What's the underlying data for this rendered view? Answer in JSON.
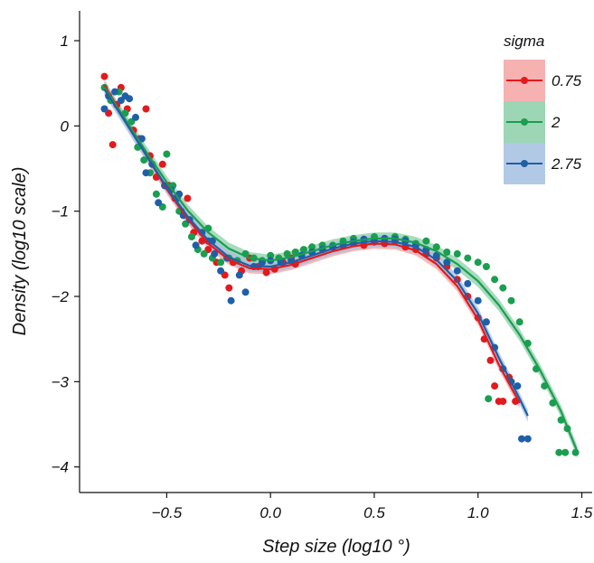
{
  "chart_data": {
    "type": "scatter",
    "xlabel": "Step size (log10 °)",
    "ylabel": "Density (log10 scale)",
    "xlim": [
      -0.92,
      1.55
    ],
    "ylim": [
      -4.3,
      1.35
    ],
    "xticks": [
      -0.5,
      0.0,
      0.5,
      1.0,
      1.5
    ],
    "xtick_labels": [
      "−0.5",
      "0.0",
      "0.5",
      "1.0",
      "1.5"
    ],
    "yticks": [
      -4,
      -3,
      -2,
      -1,
      0,
      1
    ],
    "ytick_labels": [
      "−4",
      "−3",
      "−2",
      "−1",
      "0",
      "1"
    ],
    "grid": false,
    "legend": {
      "title": "sigma",
      "position": "top-right",
      "entries": [
        {
          "label": "0.75",
          "color": "#e31a1c",
          "band": "#f4a3a3"
        },
        {
          "label": "2",
          "color": "#1a9e50",
          "band": "#8ccfa8"
        },
        {
          "label": "2.75",
          "color": "#1f5fa8",
          "band": "#a5bfe0"
        }
      ]
    },
    "series": [
      {
        "name": "0.75",
        "color": "#e31a1c",
        "band_color": "#f4a3a3",
        "points": [
          [
            -0.8,
            0.58
          ],
          [
            -0.78,
            0.15
          ],
          [
            -0.76,
            -0.22
          ],
          [
            -0.74,
            0.25
          ],
          [
            -0.72,
            0.45
          ],
          [
            -0.69,
            0.2
          ],
          [
            -0.66,
            -0.05
          ],
          [
            -0.63,
            -0.15
          ],
          [
            -0.6,
            0.2
          ],
          [
            -0.58,
            -0.35
          ],
          [
            -0.55,
            -0.6
          ],
          [
            -0.52,
            -0.45
          ],
          [
            -0.49,
            -0.7
          ],
          [
            -0.46,
            -0.85
          ],
          [
            -0.43,
            -1.0
          ],
          [
            -0.4,
            -0.85
          ],
          [
            -0.37,
            -1.25
          ],
          [
            -0.33,
            -1.35
          ],
          [
            -0.3,
            -1.45
          ],
          [
            -0.26,
            -1.6
          ],
          [
            -0.22,
            -1.75
          ],
          [
            -0.18,
            -1.6
          ],
          [
            -0.14,
            -1.7
          ],
          [
            -0.1,
            -1.55
          ],
          [
            -0.06,
            -1.65
          ],
          [
            -0.02,
            -1.72
          ],
          [
            0.02,
            -1.68
          ],
          [
            0.06,
            -1.6
          ],
          [
            0.1,
            -1.55
          ],
          [
            0.15,
            -1.52
          ],
          [
            0.2,
            -1.48
          ],
          [
            0.25,
            -1.45
          ],
          [
            0.3,
            -1.42
          ],
          [
            0.35,
            -1.4
          ],
          [
            0.4,
            -1.38
          ],
          [
            0.45,
            -1.4
          ],
          [
            0.5,
            -1.36
          ],
          [
            0.55,
            -1.38
          ],
          [
            0.6,
            -1.35
          ],
          [
            0.65,
            -1.42
          ],
          [
            0.7,
            -1.45
          ],
          [
            0.75,
            -1.5
          ],
          [
            0.8,
            -1.55
          ],
          [
            0.85,
            -1.65
          ],
          [
            0.9,
            -1.8
          ],
          [
            0.95,
            -2.0
          ],
          [
            1.0,
            -2.25
          ],
          [
            1.03,
            -2.5
          ],
          [
            1.06,
            -2.75
          ],
          [
            1.08,
            -3.05
          ],
          [
            1.1,
            -3.23
          ],
          [
            1.12,
            -3.23
          ],
          [
            1.15,
            -2.95
          ],
          [
            1.18,
            -3.23
          ],
          [
            -0.2,
            -1.9
          ],
          [
            0.12,
            -1.62
          ]
        ],
        "fit": [
          [
            -0.8,
            0.48
          ],
          [
            -0.7,
            0.07
          ],
          [
            -0.6,
            -0.34
          ],
          [
            -0.5,
            -0.74
          ],
          [
            -0.4,
            -1.09
          ],
          [
            -0.3,
            -1.38
          ],
          [
            -0.2,
            -1.57
          ],
          [
            -0.1,
            -1.67
          ],
          [
            0.0,
            -1.68
          ],
          [
            0.1,
            -1.63
          ],
          [
            0.2,
            -1.55
          ],
          [
            0.3,
            -1.47
          ],
          [
            0.4,
            -1.41
          ],
          [
            0.5,
            -1.38
          ],
          [
            0.6,
            -1.39
          ],
          [
            0.7,
            -1.46
          ],
          [
            0.8,
            -1.62
          ],
          [
            0.9,
            -1.88
          ],
          [
            1.0,
            -2.27
          ],
          [
            1.1,
            -2.8
          ],
          [
            1.2,
            -3.25
          ]
        ],
        "band_halfwidth": 0.06
      },
      {
        "name": "2",
        "color": "#1a9e50",
        "band_color": "#8ccfa8",
        "points": [
          [
            -0.8,
            0.45
          ],
          [
            -0.77,
            0.3
          ],
          [
            -0.73,
            0.4
          ],
          [
            -0.7,
            0.15
          ],
          [
            -0.67,
            0.05
          ],
          [
            -0.64,
            -0.25
          ],
          [
            -0.61,
            -0.4
          ],
          [
            -0.58,
            -0.55
          ],
          [
            -0.55,
            -0.8
          ],
          [
            -0.52,
            -0.95
          ],
          [
            -0.5,
            -0.33
          ],
          [
            -0.47,
            -0.7
          ],
          [
            -0.44,
            -1.0
          ],
          [
            -0.41,
            -1.15
          ],
          [
            -0.38,
            -1.3
          ],
          [
            -0.35,
            -1.45
          ],
          [
            -0.32,
            -1.5
          ],
          [
            -0.28,
            -1.55
          ],
          [
            -0.24,
            -1.6
          ],
          [
            -0.2,
            -1.55
          ],
          [
            -0.16,
            -1.58
          ],
          [
            -0.12,
            -1.5
          ],
          [
            -0.08,
            -1.55
          ],
          [
            -0.04,
            -1.58
          ],
          [
            0.0,
            -1.52
          ],
          [
            0.04,
            -1.55
          ],
          [
            0.08,
            -1.5
          ],
          [
            0.12,
            -1.48
          ],
          [
            0.16,
            -1.45
          ],
          [
            0.2,
            -1.42
          ],
          [
            0.25,
            -1.4
          ],
          [
            0.3,
            -1.4
          ],
          [
            0.35,
            -1.35
          ],
          [
            0.4,
            -1.32
          ],
          [
            0.45,
            -1.33
          ],
          [
            0.5,
            -1.3
          ],
          [
            0.55,
            -1.32
          ],
          [
            0.6,
            -1.3
          ],
          [
            0.65,
            -1.33
          ],
          [
            0.7,
            -1.38
          ],
          [
            0.75,
            -1.35
          ],
          [
            0.8,
            -1.42
          ],
          [
            0.85,
            -1.48
          ],
          [
            0.9,
            -1.5
          ],
          [
            0.95,
            -1.55
          ],
          [
            1.0,
            -1.6
          ],
          [
            1.04,
            -1.65
          ],
          [
            1.08,
            -1.8
          ],
          [
            1.12,
            -1.9
          ],
          [
            1.16,
            -2.05
          ],
          [
            1.2,
            -2.3
          ],
          [
            1.24,
            -2.55
          ],
          [
            1.28,
            -2.85
          ],
          [
            1.32,
            -3.05
          ],
          [
            1.36,
            -3.25
          ],
          [
            1.4,
            -3.45
          ],
          [
            1.43,
            -3.55
          ],
          [
            1.39,
            -3.83
          ],
          [
            1.42,
            -3.83
          ],
          [
            1.47,
            -3.83
          ],
          [
            1.05,
            -3.2
          ],
          [
            -0.3,
            -1.2
          ]
        ],
        "fit": [
          [
            -0.8,
            0.45
          ],
          [
            -0.7,
            0.08
          ],
          [
            -0.6,
            -0.3
          ],
          [
            -0.5,
            -0.66
          ],
          [
            -0.4,
            -0.99
          ],
          [
            -0.3,
            -1.25
          ],
          [
            -0.2,
            -1.44
          ],
          [
            -0.1,
            -1.55
          ],
          [
            0.0,
            -1.58
          ],
          [
            0.1,
            -1.54
          ],
          [
            0.2,
            -1.47
          ],
          [
            0.3,
            -1.4
          ],
          [
            0.4,
            -1.35
          ],
          [
            0.5,
            -1.32
          ],
          [
            0.6,
            -1.32
          ],
          [
            0.7,
            -1.37
          ],
          [
            0.8,
            -1.47
          ],
          [
            0.9,
            -1.62
          ],
          [
            1.0,
            -1.82
          ],
          [
            1.1,
            -2.1
          ],
          [
            1.2,
            -2.45
          ],
          [
            1.3,
            -2.87
          ],
          [
            1.4,
            -3.35
          ],
          [
            1.48,
            -3.83
          ]
        ],
        "band_halfwidth": 0.07
      },
      {
        "name": "2.75",
        "color": "#1f5fa8",
        "band_color": "#a5bfe0",
        "points": [
          [
            -0.8,
            0.2
          ],
          [
            -0.78,
            0.35
          ],
          [
            -0.75,
            0.4
          ],
          [
            -0.72,
            0.3
          ],
          [
            -0.7,
            0.35
          ],
          [
            -0.68,
            0.32
          ],
          [
            -0.65,
            0.1
          ],
          [
            -0.62,
            -0.15
          ],
          [
            -0.6,
            -0.55
          ],
          [
            -0.57,
            -0.45
          ],
          [
            -0.54,
            -0.9
          ],
          [
            -0.51,
            -0.7
          ],
          [
            -0.48,
            -0.75
          ],
          [
            -0.45,
            -0.85
          ],
          [
            -0.42,
            -1.05
          ],
          [
            -0.39,
            -1.1
          ],
          [
            -0.36,
            -1.4
          ],
          [
            -0.33,
            -1.25
          ],
          [
            -0.3,
            -1.35
          ],
          [
            -0.27,
            -1.5
          ],
          [
            -0.24,
            -1.7
          ],
          [
            -0.21,
            -1.55
          ],
          [
            -0.19,
            -2.05
          ],
          [
            -0.15,
            -1.75
          ],
          [
            -0.12,
            -1.95
          ],
          [
            -0.08,
            -1.65
          ],
          [
            -0.04,
            -1.6
          ],
          [
            0.0,
            -1.58
          ],
          [
            0.05,
            -1.6
          ],
          [
            0.1,
            -1.58
          ],
          [
            0.15,
            -1.52
          ],
          [
            0.2,
            -1.48
          ],
          [
            0.25,
            -1.45
          ],
          [
            0.3,
            -1.42
          ],
          [
            0.35,
            -1.4
          ],
          [
            0.4,
            -1.36
          ],
          [
            0.45,
            -1.33
          ],
          [
            0.5,
            -1.35
          ],
          [
            0.55,
            -1.32
          ],
          [
            0.6,
            -1.33
          ],
          [
            0.65,
            -1.35
          ],
          [
            0.7,
            -1.4
          ],
          [
            0.75,
            -1.45
          ],
          [
            0.8,
            -1.52
          ],
          [
            0.85,
            -1.6
          ],
          [
            0.9,
            -1.7
          ],
          [
            0.95,
            -1.85
          ],
          [
            1.0,
            -2.05
          ],
          [
            1.04,
            -2.3
          ],
          [
            1.08,
            -2.6
          ],
          [
            1.12,
            -2.85
          ],
          [
            1.16,
            -3.0
          ],
          [
            1.19,
            -3.05
          ],
          [
            1.21,
            -3.67
          ],
          [
            1.24,
            -3.67
          ],
          [
            -0.44,
            -0.8
          ],
          [
            -0.28,
            -1.35
          ]
        ],
        "fit": [
          [
            -0.8,
            0.43
          ],
          [
            -0.7,
            0.05
          ],
          [
            -0.6,
            -0.34
          ],
          [
            -0.5,
            -0.72
          ],
          [
            -0.4,
            -1.06
          ],
          [
            -0.3,
            -1.34
          ],
          [
            -0.2,
            -1.54
          ],
          [
            -0.1,
            -1.64
          ],
          [
            0.0,
            -1.65
          ],
          [
            0.1,
            -1.6
          ],
          [
            0.2,
            -1.52
          ],
          [
            0.3,
            -1.44
          ],
          [
            0.4,
            -1.38
          ],
          [
            0.5,
            -1.35
          ],
          [
            0.6,
            -1.36
          ],
          [
            0.7,
            -1.42
          ],
          [
            0.8,
            -1.57
          ],
          [
            0.9,
            -1.82
          ],
          [
            1.0,
            -2.2
          ],
          [
            1.1,
            -2.72
          ],
          [
            1.2,
            -3.2
          ],
          [
            1.24,
            -3.4
          ]
        ],
        "band_halfwidth": 0.07
      }
    ]
  }
}
